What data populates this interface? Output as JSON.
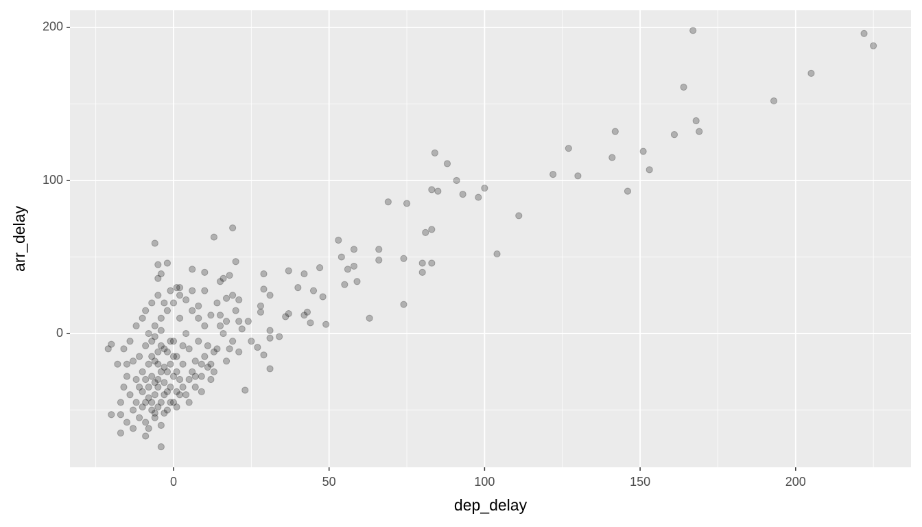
{
  "chart_data": {
    "type": "scatter",
    "x_label": "dep_delay",
    "y_label": "arr_delay",
    "x": [
      167,
      222,
      225,
      205,
      193,
      164,
      168,
      169,
      161,
      142,
      141,
      127,
      130,
      151,
      153,
      146,
      122,
      111,
      104,
      100,
      98,
      91,
      93,
      88,
      84,
      85,
      83,
      83,
      81,
      83,
      80,
      80,
      75,
      69,
      74,
      74,
      66,
      66,
      63,
      53,
      54,
      58,
      58,
      56,
      59,
      55,
      47,
      42,
      40,
      45,
      48,
      43,
      44,
      49,
      42,
      37,
      37,
      36,
      34,
      31,
      29,
      29,
      28,
      28,
      31,
      31,
      29,
      31,
      27,
      25,
      24,
      23,
      19,
      13,
      20,
      18,
      16,
      15,
      -6,
      -2,
      -5,
      -4,
      -5,
      1,
      2,
      6,
      10,
      21,
      17,
      20,
      -20,
      -17,
      -17,
      -4,
      -9,
      -21,
      -20,
      -15,
      -12,
      -10,
      -8,
      -7,
      -6,
      -5,
      -5,
      -4,
      -3,
      -2,
      -1,
      0,
      1,
      2,
      3,
      4,
      5,
      6,
      7,
      8,
      9,
      10,
      12,
      14,
      -14,
      -13,
      -11,
      -9,
      -7,
      -6,
      -4,
      -2,
      0,
      2,
      -16,
      -17,
      -18,
      -14,
      -12,
      -10,
      -8,
      -6,
      -4,
      -2,
      0,
      2,
      4,
      6,
      8,
      10,
      12,
      14,
      16,
      18,
      -9,
      -8,
      -7,
      -6,
      -5,
      -4,
      -3,
      -3,
      -2,
      -1,
      0,
      1,
      -11,
      -10,
      -9,
      -8,
      -7,
      -6,
      -5,
      -4,
      -3,
      -2,
      -1,
      0,
      1,
      3,
      5,
      7,
      9,
      11,
      13,
      15,
      17,
      19,
      21,
      22,
      -16,
      -15,
      -13,
      -12,
      -11,
      -10,
      -9,
      -8,
      -13,
      -15,
      -5,
      -3,
      -1,
      1,
      3,
      5,
      7,
      9,
      11,
      13,
      15,
      17,
      19,
      21,
      6,
      8,
      10,
      12,
      4,
      2,
      -1,
      -3,
      -5,
      -7,
      -9,
      -6,
      -4,
      -7,
      -6
    ],
    "values": [
      198,
      196,
      188,
      170,
      152,
      161,
      139,
      132,
      130,
      132,
      115,
      121,
      103,
      119,
      107,
      93,
      104,
      77,
      52,
      95,
      89,
      100,
      91,
      111,
      118,
      93,
      94,
      68,
      66,
      46,
      46,
      40,
      85,
      86,
      49,
      19,
      55,
      48,
      10,
      61,
      50,
      55,
      44,
      42,
      34,
      32,
      43,
      39,
      30,
      28,
      24,
      14,
      7,
      6,
      12,
      41,
      13,
      11,
      -2,
      25,
      39,
      29,
      18,
      14,
      2,
      -3,
      -14,
      -23,
      -9,
      -5,
      8,
      -37,
      69,
      63,
      47,
      38,
      36,
      34,
      59,
      46,
      45,
      39,
      36,
      30,
      30,
      42,
      40,
      22,
      23,
      15,
      -53,
      -53,
      -65,
      -74,
      -67,
      -10,
      -7,
      -20,
      -30,
      -25,
      -35,
      -15,
      -40,
      -20,
      -30,
      -45,
      -10,
      -25,
      -35,
      -5,
      -15,
      -30,
      -20,
      -40,
      -10,
      -25,
      -35,
      -5,
      -20,
      -15,
      -30,
      -10,
      -40,
      -50,
      -55,
      -45,
      -50,
      -55,
      -60,
      -50,
      -45,
      -40,
      -35,
      -45,
      -20,
      -5,
      5,
      10,
      0,
      5,
      10,
      15,
      20,
      10,
      0,
      15,
      10,
      5,
      -20,
      20,
      0,
      -10,
      -30,
      -20,
      -28,
      -18,
      -35,
      -25,
      -32,
      -40,
      -12,
      -20,
      -28,
      -38,
      -15,
      -38,
      -8,
      -42,
      -5,
      -32,
      -12,
      -8,
      -22,
      -38,
      -5,
      -15,
      -25,
      -8,
      -30,
      -18,
      -28,
      -8,
      -25,
      5,
      -18,
      -5,
      -12,
      3,
      -10,
      -28,
      -18,
      -45,
      -35,
      -48,
      -58,
      -62,
      -62,
      -58,
      -48,
      -52,
      -45,
      -48,
      -35,
      -45,
      -28,
      -38,
      -22,
      -12,
      12,
      8,
      25,
      8,
      28,
      18,
      28,
      12,
      22,
      25,
      28,
      20,
      25,
      20,
      15,
      -2,
      2,
      -45,
      -52
    ],
    "color": "#000000",
    "opacity": 0.25,
    "xlim": [
      -33.3,
      237.1
    ],
    "ylim": [
      -87.4,
      211.2
    ],
    "xticks": [
      0,
      50,
      100,
      150,
      200
    ],
    "yticks": [
      0,
      100,
      200
    ],
    "xminor": [
      -25,
      25,
      75,
      125,
      175,
      225
    ],
    "yminor": [
      -50,
      50,
      150
    ],
    "grid": true
  }
}
